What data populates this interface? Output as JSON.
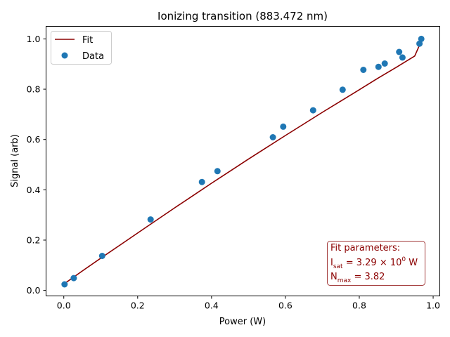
{
  "chart_data": {
    "type": "scatter",
    "title": "Ionizing transition (883.472 nm)",
    "xlabel": "Power (W)",
    "ylabel": "Signal (arb)",
    "xlim": [
      -0.048,
      1.018
    ],
    "ylim": [
      -0.022,
      1.05
    ],
    "xticks": [
      "0.0",
      "0.2",
      "0.4",
      "0.6",
      "0.8",
      "1.0"
    ],
    "xtick_values": [
      0.0,
      0.2,
      0.4,
      0.6,
      0.8,
      1.0
    ],
    "yticks": [
      "0.0",
      "0.2",
      "0.4",
      "0.6",
      "0.8",
      "1.0"
    ],
    "ytick_values": [
      0.0,
      0.2,
      0.4,
      0.6,
      0.8,
      1.0
    ],
    "grid": false,
    "legend_position": "top-left",
    "series": [
      {
        "name": "Fit",
        "kind": "line",
        "color": "#8b0000",
        "x": [
          0.0,
          0.05,
          0.1,
          0.15,
          0.2,
          0.25,
          0.3,
          0.35,
          0.4,
          0.45,
          0.5,
          0.55,
          0.6,
          0.65,
          0.7,
          0.75,
          0.8,
          0.85,
          0.9,
          0.95,
          0.97
        ],
        "y": [
          0.025,
          0.077,
          0.128,
          0.178,
          0.228,
          0.278,
          0.328,
          0.377,
          0.426,
          0.474,
          0.522,
          0.569,
          0.616,
          0.662,
          0.708,
          0.753,
          0.798,
          0.843,
          0.887,
          0.932,
          0.998
        ]
      },
      {
        "name": "Data",
        "kind": "scatter",
        "color": "#1f77b4",
        "x": [
          0.002,
          0.027,
          0.104,
          0.235,
          0.374,
          0.416,
          0.566,
          0.594,
          0.675,
          0.755,
          0.811,
          0.852,
          0.869,
          0.908,
          0.917,
          0.963,
          0.968
        ],
        "y": [
          0.024,
          0.049,
          0.137,
          0.282,
          0.431,
          0.474,
          0.609,
          0.651,
          0.716,
          0.798,
          0.877,
          0.889,
          0.902,
          0.948,
          0.926,
          0.981,
          1.0
        ]
      }
    ],
    "annotation": {
      "heading": "Fit parameters:",
      "isat_name": "I",
      "isat_sub": "sat",
      "isat_value": " = 3.29",
      "isat_times": " × 10",
      "isat_exp": "0",
      "isat_unit": " W",
      "nmax_name": "N",
      "nmax_sub": "max",
      "nmax_value": " = 3.82"
    }
  }
}
